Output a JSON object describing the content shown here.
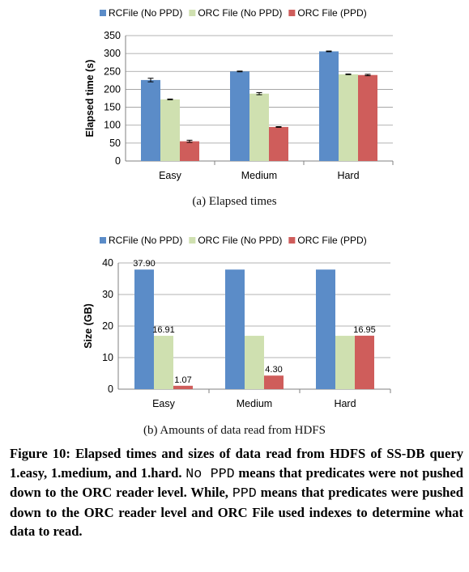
{
  "chart_data": [
    {
      "type": "bar",
      "ylabel": "Elapsed time (s)",
      "ylim": [
        0,
        350
      ],
      "yticks": [
        0,
        50,
        100,
        150,
        200,
        250,
        300,
        350
      ],
      "grid": true,
      "legend": "top",
      "categories": [
        "Easy",
        "Medium",
        "Hard"
      ],
      "series": [
        {
          "name": "RCFile (No PPD)",
          "color": "#5b8cc8",
          "values": [
            226,
            250,
            306
          ],
          "errors": [
            5,
            1,
            1
          ]
        },
        {
          "name": "ORC File (No PPD)",
          "color": "#cfe0b0",
          "values": [
            172,
            188,
            242
          ],
          "errors": [
            1,
            3,
            1
          ]
        },
        {
          "name": "ORC File (PPD)",
          "color": "#cf5d5b",
          "values": [
            55,
            95,
            240
          ],
          "errors": [
            3,
            1,
            2
          ]
        }
      ]
    },
    {
      "type": "bar",
      "ylabel": "Size (GB)",
      "ylim": [
        0,
        40
      ],
      "yticks": [
        0,
        10,
        20,
        30,
        40
      ],
      "grid": true,
      "legend": "top",
      "categories": [
        "Easy",
        "Medium",
        "Hard"
      ],
      "series": [
        {
          "name": "RCFile (No PPD)",
          "color": "#5b8cc8",
          "values": [
            37.9,
            37.9,
            37.9
          ],
          "labels": [
            "37.90",
            "",
            ""
          ]
        },
        {
          "name": "ORC File (No PPD)",
          "color": "#cfe0b0",
          "values": [
            16.91,
            16.91,
            16.91
          ],
          "labels": [
            "16.91",
            "",
            ""
          ]
        },
        {
          "name": "ORC File (PPD)",
          "color": "#cf5d5b",
          "values": [
            1.07,
            4.3,
            16.95
          ],
          "labels": [
            "1.07",
            "4.30",
            "16.95"
          ]
        }
      ]
    }
  ],
  "captions": {
    "a": "(a)  Elapsed times",
    "b": "(b)  Amounts of data read from HDFS"
  },
  "figure_caption": {
    "part1": "Figure 10: Elapsed times and sizes of data read from HDFS of SS-DB query 1.easy, 1.medium, and 1.hard.",
    "mono1": "No PPD",
    "part2": "means that predicates were not pushed down to the ORC reader level. While,",
    "mono2": "PPD",
    "part3": "means that predicates were pushed down to the ORC reader level and ORC File used indexes to determine what data to read."
  }
}
